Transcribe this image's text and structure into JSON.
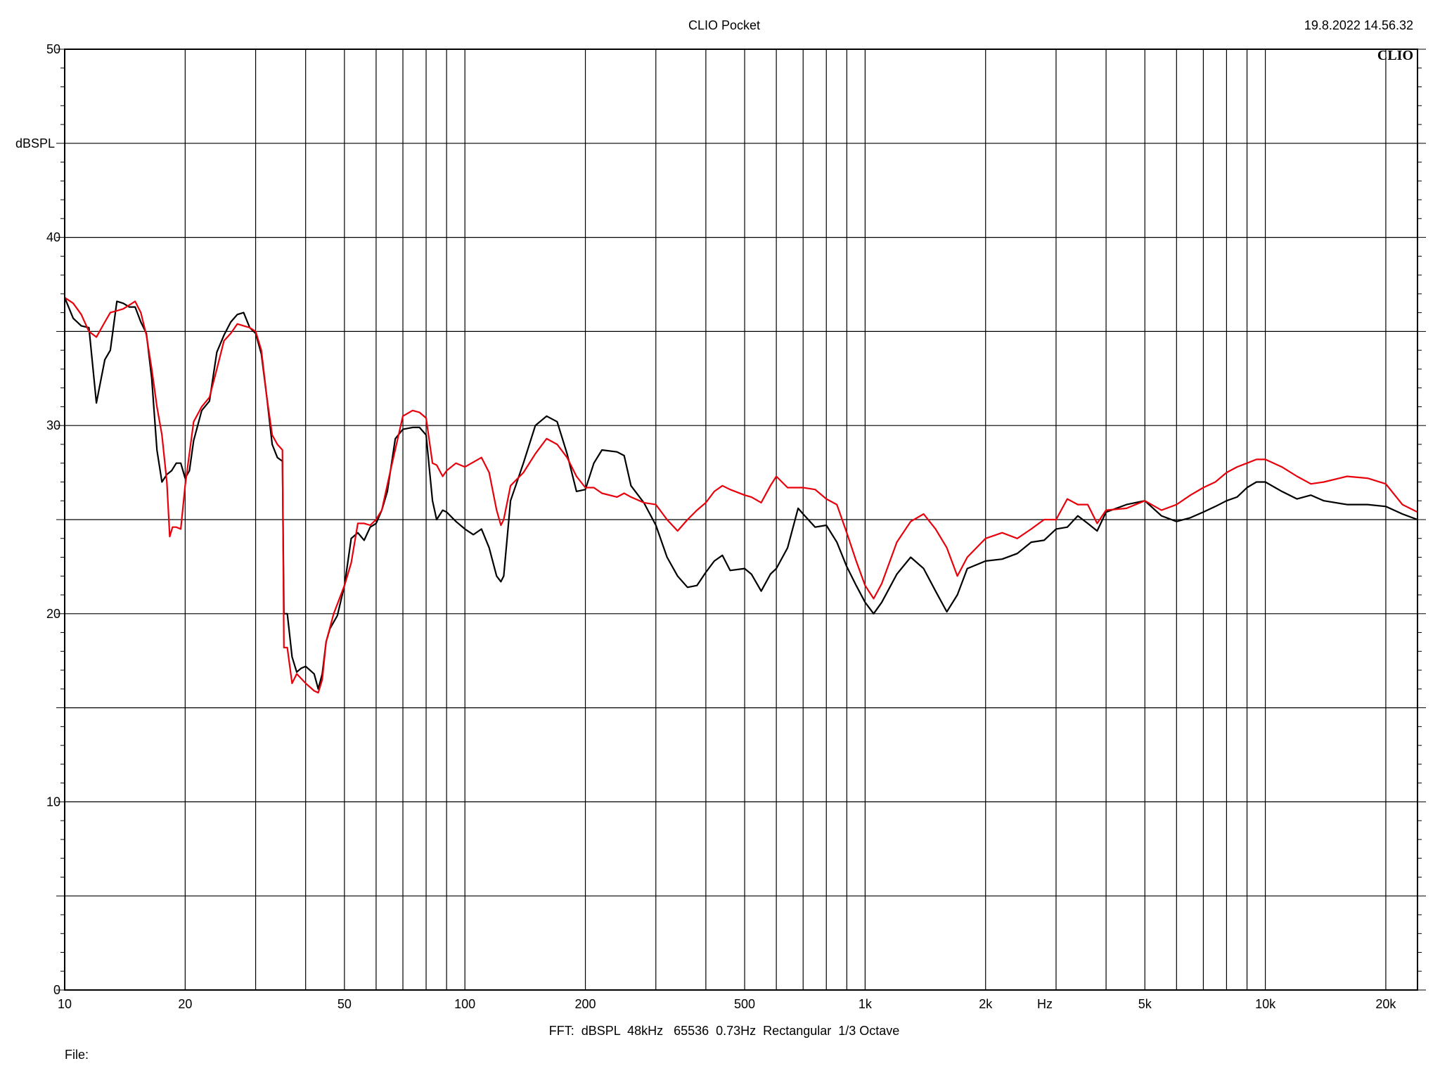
{
  "header": {
    "title": "CLIO Pocket",
    "timestamp": "19.8.2022 14.56.32",
    "logo": "CLIO"
  },
  "footer": {
    "fft_info": "FFT:  dBSPL  48kHz   65536  0.73Hz  Rectangular  1/3 Octave",
    "file_label": "File:"
  },
  "chart_data": {
    "type": "line",
    "xscale": "log",
    "xlim": [
      10,
      24000
    ],
    "ylim": [
      0,
      50
    ],
    "ylabel": "dBSPL",
    "xlabel": "Hz",
    "grid": true,
    "x_ticks": [
      {
        "value": 10,
        "label": "10"
      },
      {
        "value": 20,
        "label": "20"
      },
      {
        "value": 50,
        "label": "50"
      },
      {
        "value": 100,
        "label": "100"
      },
      {
        "value": 200,
        "label": "200"
      },
      {
        "value": 500,
        "label": "500"
      },
      {
        "value": 1000,
        "label": "1k"
      },
      {
        "value": 2000,
        "label": "2k"
      },
      {
        "value": 5000,
        "label": "5k"
      },
      {
        "value": 10000,
        "label": "10k"
      },
      {
        "value": 20000,
        "label": "20k"
      }
    ],
    "y_ticks": [
      {
        "value": 0,
        "label": "0"
      },
      {
        "value": 10,
        "label": "10"
      },
      {
        "value": 20,
        "label": "20"
      },
      {
        "value": 30,
        "label": "30"
      },
      {
        "value": 40,
        "label": "40"
      },
      {
        "value": 50,
        "label": "50"
      }
    ],
    "series": [
      {
        "color": "#000000",
        "points": [
          [
            10,
            36.8
          ],
          [
            10.5,
            35.7
          ],
          [
            11,
            35.3
          ],
          [
            11.5,
            35.2
          ],
          [
            12,
            31.2
          ],
          [
            12.6,
            33.5
          ],
          [
            13,
            34.0
          ],
          [
            13.5,
            36.6
          ],
          [
            14,
            36.5
          ],
          [
            14.5,
            36.3
          ],
          [
            15,
            36.3
          ],
          [
            15.5,
            35.5
          ],
          [
            16,
            34.9
          ],
          [
            16.5,
            32.5
          ],
          [
            17,
            28.7
          ],
          [
            17.5,
            27.0
          ],
          [
            18,
            27.4
          ],
          [
            18.5,
            27.6
          ],
          [
            19,
            28.0
          ],
          [
            19.5,
            28.0
          ],
          [
            20,
            27.2
          ],
          [
            20.5,
            27.6
          ],
          [
            21,
            29.2
          ],
          [
            22,
            30.8
          ],
          [
            23,
            31.3
          ],
          [
            24,
            33.9
          ],
          [
            25,
            34.8
          ],
          [
            26,
            35.5
          ],
          [
            27,
            35.9
          ],
          [
            28,
            36.0
          ],
          [
            29,
            35.2
          ],
          [
            30,
            34.9
          ],
          [
            31,
            33.8
          ],
          [
            32,
            31.5
          ],
          [
            33,
            29.0
          ],
          [
            34,
            28.3
          ],
          [
            35,
            28.1
          ],
          [
            35.3,
            20.0
          ],
          [
            36,
            20.0
          ],
          [
            37,
            17.7
          ],
          [
            38,
            16.9
          ],
          [
            39,
            17.1
          ],
          [
            40,
            17.2
          ],
          [
            42,
            16.8
          ],
          [
            43,
            16.0
          ],
          [
            44,
            16.8
          ],
          [
            45,
            18.5
          ],
          [
            46,
            19.2
          ],
          [
            48,
            19.9
          ],
          [
            50,
            21.5
          ],
          [
            52,
            24.0
          ],
          [
            54,
            24.3
          ],
          [
            56,
            23.9
          ],
          [
            58,
            24.6
          ],
          [
            60,
            24.8
          ],
          [
            62,
            25.5
          ],
          [
            64,
            26.5
          ],
          [
            67,
            29.3
          ],
          [
            70,
            29.8
          ],
          [
            74,
            29.9
          ],
          [
            77,
            29.9
          ],
          [
            80,
            29.5
          ],
          [
            83,
            26.0
          ],
          [
            85,
            25.0
          ],
          [
            88,
            25.5
          ],
          [
            90,
            25.4
          ],
          [
            95,
            24.9
          ],
          [
            100,
            24.5
          ],
          [
            105,
            24.2
          ],
          [
            110,
            24.5
          ],
          [
            115,
            23.5
          ],
          [
            120,
            22.0
          ],
          [
            123,
            21.7
          ],
          [
            125,
            22.0
          ],
          [
            130,
            26.0
          ],
          [
            140,
            28.0
          ],
          [
            150,
            30.0
          ],
          [
            160,
            30.5
          ],
          [
            170,
            30.2
          ],
          [
            180,
            28.5
          ],
          [
            190,
            26.5
          ],
          [
            200,
            26.6
          ],
          [
            210,
            28.0
          ],
          [
            220,
            28.7
          ],
          [
            240,
            28.6
          ],
          [
            250,
            28.4
          ],
          [
            260,
            26.8
          ],
          [
            280,
            25.9
          ],
          [
            300,
            24.7
          ],
          [
            320,
            23.0
          ],
          [
            340,
            22.0
          ],
          [
            360,
            21.4
          ],
          [
            380,
            21.5
          ],
          [
            400,
            22.2
          ],
          [
            420,
            22.8
          ],
          [
            440,
            23.1
          ],
          [
            460,
            22.3
          ],
          [
            500,
            22.4
          ],
          [
            520,
            22.1
          ],
          [
            550,
            21.2
          ],
          [
            580,
            22.1
          ],
          [
            600,
            22.4
          ],
          [
            640,
            23.5
          ],
          [
            680,
            25.6
          ],
          [
            700,
            25.3
          ],
          [
            750,
            24.6
          ],
          [
            800,
            24.7
          ],
          [
            850,
            23.8
          ],
          [
            900,
            22.5
          ],
          [
            950,
            21.5
          ],
          [
            1000,
            20.6
          ],
          [
            1050,
            20.0
          ],
          [
            1100,
            20.6
          ],
          [
            1200,
            22.1
          ],
          [
            1300,
            23.0
          ],
          [
            1400,
            22.4
          ],
          [
            1500,
            21.2
          ],
          [
            1600,
            20.1
          ],
          [
            1700,
            21.0
          ],
          [
            1800,
            22.4
          ],
          [
            2000,
            22.8
          ],
          [
            2200,
            22.9
          ],
          [
            2400,
            23.2
          ],
          [
            2600,
            23.8
          ],
          [
            2800,
            23.9
          ],
          [
            3000,
            24.5
          ],
          [
            3200,
            24.6
          ],
          [
            3400,
            25.2
          ],
          [
            3600,
            24.8
          ],
          [
            3800,
            24.4
          ],
          [
            4000,
            25.4
          ],
          [
            4500,
            25.8
          ],
          [
            5000,
            26.0
          ],
          [
            5500,
            25.2
          ],
          [
            6000,
            24.9
          ],
          [
            6500,
            25.1
          ],
          [
            7000,
            25.4
          ],
          [
            7500,
            25.7
          ],
          [
            8000,
            26.0
          ],
          [
            8500,
            26.2
          ],
          [
            9000,
            26.7
          ],
          [
            9500,
            27.0
          ],
          [
            10000,
            27.0
          ],
          [
            11000,
            26.5
          ],
          [
            12000,
            26.1
          ],
          [
            13000,
            26.3
          ],
          [
            14000,
            26.0
          ],
          [
            16000,
            25.8
          ],
          [
            18000,
            25.8
          ],
          [
            20000,
            25.7
          ],
          [
            22000,
            25.3
          ],
          [
            24000,
            25.0
          ]
        ]
      },
      {
        "color": "#e8000b",
        "points": [
          [
            10,
            36.8
          ],
          [
            10.5,
            36.5
          ],
          [
            11,
            35.9
          ],
          [
            11.5,
            35.0
          ],
          [
            12,
            34.7
          ],
          [
            12.6,
            35.5
          ],
          [
            13,
            36.0
          ],
          [
            13.5,
            36.1
          ],
          [
            14,
            36.2
          ],
          [
            14.5,
            36.4
          ],
          [
            15,
            36.6
          ],
          [
            15.5,
            36.0
          ],
          [
            16,
            34.8
          ],
          [
            16.5,
            33.0
          ],
          [
            17,
            31.0
          ],
          [
            17.5,
            29.5
          ],
          [
            18,
            27.0
          ],
          [
            18.3,
            24.1
          ],
          [
            18.6,
            24.6
          ],
          [
            19,
            24.6
          ],
          [
            19.5,
            24.5
          ],
          [
            20,
            26.8
          ],
          [
            21,
            30.2
          ],
          [
            22,
            31.0
          ],
          [
            23,
            31.5
          ],
          [
            24,
            33.0
          ],
          [
            25,
            34.5
          ],
          [
            26,
            34.9
          ],
          [
            27,
            35.4
          ],
          [
            28,
            35.3
          ],
          [
            29,
            35.2
          ],
          [
            30,
            35.0
          ],
          [
            31,
            34.0
          ],
          [
            32,
            31.5
          ],
          [
            33,
            29.5
          ],
          [
            34,
            29.0
          ],
          [
            35,
            28.7
          ],
          [
            35.3,
            18.2
          ],
          [
            36,
            18.2
          ],
          [
            37,
            16.3
          ],
          [
            38,
            16.8
          ],
          [
            40,
            16.3
          ],
          [
            42,
            15.9
          ],
          [
            43,
            15.8
          ],
          [
            44,
            16.5
          ],
          [
            45,
            18.5
          ],
          [
            47,
            20.0
          ],
          [
            50,
            21.5
          ],
          [
            52,
            22.7
          ],
          [
            54,
            24.8
          ],
          [
            56,
            24.8
          ],
          [
            58,
            24.7
          ],
          [
            60,
            25.0
          ],
          [
            62,
            25.5
          ],
          [
            65,
            27.5
          ],
          [
            70,
            30.5
          ],
          [
            74,
            30.8
          ],
          [
            77,
            30.7
          ],
          [
            80,
            30.4
          ],
          [
            83,
            28.0
          ],
          [
            85,
            27.9
          ],
          [
            88,
            27.3
          ],
          [
            90,
            27.6
          ],
          [
            95,
            28.0
          ],
          [
            100,
            27.8
          ],
          [
            110,
            28.3
          ],
          [
            115,
            27.5
          ],
          [
            120,
            25.5
          ],
          [
            123,
            24.7
          ],
          [
            125,
            25.0
          ],
          [
            130,
            26.8
          ],
          [
            140,
            27.5
          ],
          [
            150,
            28.5
          ],
          [
            160,
            29.3
          ],
          [
            170,
            29.0
          ],
          [
            180,
            28.3
          ],
          [
            190,
            27.3
          ],
          [
            200,
            26.7
          ],
          [
            210,
            26.7
          ],
          [
            220,
            26.4
          ],
          [
            240,
            26.2
          ],
          [
            250,
            26.4
          ],
          [
            260,
            26.2
          ],
          [
            280,
            25.9
          ],
          [
            300,
            25.8
          ],
          [
            320,
            25.0
          ],
          [
            340,
            24.4
          ],
          [
            360,
            25.0
          ],
          [
            380,
            25.5
          ],
          [
            400,
            25.9
          ],
          [
            420,
            26.5
          ],
          [
            440,
            26.8
          ],
          [
            460,
            26.6
          ],
          [
            500,
            26.3
          ],
          [
            520,
            26.2
          ],
          [
            550,
            25.9
          ],
          [
            580,
            26.8
          ],
          [
            600,
            27.3
          ],
          [
            640,
            26.7
          ],
          [
            680,
            26.7
          ],
          [
            700,
            26.7
          ],
          [
            750,
            26.6
          ],
          [
            800,
            26.1
          ],
          [
            850,
            25.8
          ],
          [
            900,
            24.3
          ],
          [
            950,
            22.8
          ],
          [
            1000,
            21.5
          ],
          [
            1050,
            20.8
          ],
          [
            1100,
            21.6
          ],
          [
            1200,
            23.8
          ],
          [
            1300,
            24.9
          ],
          [
            1400,
            25.3
          ],
          [
            1500,
            24.5
          ],
          [
            1600,
            23.5
          ],
          [
            1700,
            22.0
          ],
          [
            1800,
            23.0
          ],
          [
            2000,
            24.0
          ],
          [
            2200,
            24.3
          ],
          [
            2400,
            24.0
          ],
          [
            2600,
            24.5
          ],
          [
            2800,
            25.0
          ],
          [
            3000,
            25.0
          ],
          [
            3200,
            26.1
          ],
          [
            3400,
            25.8
          ],
          [
            3600,
            25.8
          ],
          [
            3800,
            24.8
          ],
          [
            4000,
            25.5
          ],
          [
            4500,
            25.6
          ],
          [
            5000,
            26.0
          ],
          [
            5500,
            25.5
          ],
          [
            6000,
            25.8
          ],
          [
            6500,
            26.3
          ],
          [
            7000,
            26.7
          ],
          [
            7500,
            27.0
          ],
          [
            8000,
            27.5
          ],
          [
            8500,
            27.8
          ],
          [
            9000,
            28.0
          ],
          [
            9500,
            28.2
          ],
          [
            10000,
            28.2
          ],
          [
            11000,
            27.8
          ],
          [
            12000,
            27.3
          ],
          [
            13000,
            26.9
          ],
          [
            14000,
            27.0
          ],
          [
            16000,
            27.3
          ],
          [
            18000,
            27.2
          ],
          [
            20000,
            26.9
          ],
          [
            22000,
            25.8
          ],
          [
            24000,
            25.4
          ]
        ]
      }
    ]
  }
}
